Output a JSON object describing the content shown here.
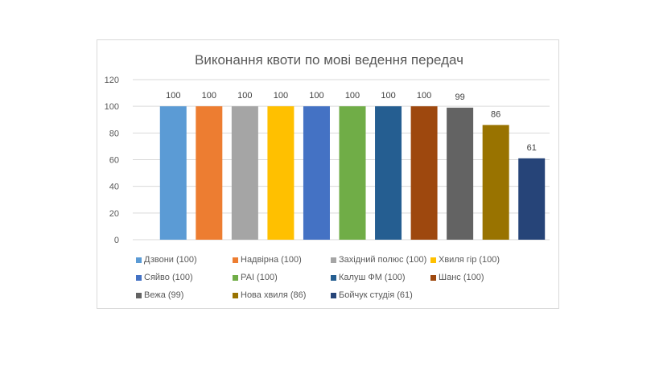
{
  "chart_data": {
    "type": "bar",
    "title": "Виконання квоти по мові ведення передач",
    "xlabel": "",
    "ylabel": "",
    "ylim": [
      0,
      120
    ],
    "yticks": [
      0,
      20,
      40,
      60,
      80,
      100,
      120
    ],
    "grid": true,
    "legend_position": "bottom",
    "series": [
      {
        "name": "Дзвони (100)",
        "value": 100,
        "color": "#5b9bd5"
      },
      {
        "name": "Надвірна (100)",
        "value": 100,
        "color": "#ed7d31"
      },
      {
        "name": "Західний полюс (100)",
        "value": 100,
        "color": "#a5a5a5"
      },
      {
        "name": "Хвиля гір (100)",
        "value": 100,
        "color": "#ffc000"
      },
      {
        "name": "Сяйво (100)",
        "value": 100,
        "color": "#4472c4"
      },
      {
        "name": "РАІ (100)",
        "value": 100,
        "color": "#70ad47"
      },
      {
        "name": "Калуш ФМ (100)",
        "value": 100,
        "color": "#255e91"
      },
      {
        "name": "Шанс (100)",
        "value": 100,
        "color": "#9e480e"
      },
      {
        "name": "Вежа (99)",
        "value": 99,
        "color": "#636363"
      },
      {
        "name": "Нова хвиля (86)",
        "value": 86,
        "color": "#997300"
      },
      {
        "name": "Бойчук студія (61)",
        "value": 61,
        "color": "#264478"
      }
    ]
  }
}
